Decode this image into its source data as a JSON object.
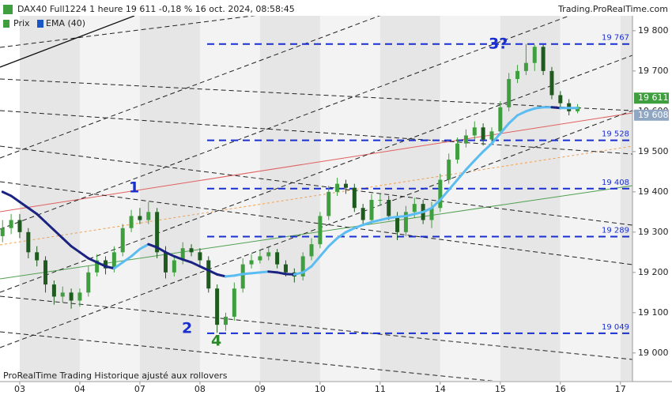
{
  "chart_data": {
    "type": "candlestick",
    "title": "DAX40 Full1224 1 heure 19 611 -0,18 % 16 oct. 2024, 08:58:45",
    "source": "Trading.ProRealTime.com",
    "footer": "ProRealTime Trading  Historique ajusté aux rollovers",
    "xlim": [
      -2.3,
      71.4
    ],
    "xticks": [
      {
        "value": 0,
        "label": "03"
      },
      {
        "value": 7,
        "label": "04"
      },
      {
        "value": 14,
        "label": "07"
      },
      {
        "value": 21,
        "label": "08"
      },
      {
        "value": 28,
        "label": "09"
      },
      {
        "value": 35,
        "label": "10"
      },
      {
        "value": 42,
        "label": "11"
      },
      {
        "value": 49,
        "label": "14"
      },
      {
        "value": 56,
        "label": "15"
      },
      {
        "value": 63,
        "label": "16"
      },
      {
        "value": 70,
        "label": "17"
      }
    ],
    "ylim": [
      18931,
      19837
    ],
    "yticks": [
      {
        "value": 19000,
        "label": "19 000"
      },
      {
        "value": 19100,
        "label": "19 100"
      },
      {
        "value": 19200,
        "label": "19 200"
      },
      {
        "value": 19300,
        "label": "19 300"
      },
      {
        "value": 19400,
        "label": "19 400"
      },
      {
        "value": 19500,
        "label": "19 500"
      },
      {
        "value": 19600,
        "label": "19 600"
      },
      {
        "value": 19700,
        "label": "19 700"
      },
      {
        "value": 19800,
        "label": "19 800"
      }
    ],
    "x": [
      -2,
      -1,
      0,
      1,
      2,
      3,
      4,
      5,
      6,
      7,
      8,
      9,
      10,
      11,
      12,
      13,
      14,
      15,
      16,
      17,
      18,
      19,
      20,
      21,
      22,
      23,
      24,
      25,
      26,
      27,
      28,
      29,
      30,
      31,
      32,
      33,
      34,
      35,
      36,
      37,
      38,
      39,
      40,
      41,
      42,
      43,
      44,
      45,
      46,
      47,
      48,
      49,
      50,
      51,
      52,
      53,
      54,
      55,
      56,
      57,
      58,
      59,
      60,
      61,
      62,
      63,
      64,
      65
    ],
    "series": [
      {
        "name": "Prix",
        "up_color": "#3f9f3f",
        "down_color": "#1f5a1f",
        "legend_color": "#3f9f3f",
        "open": [
          19290,
          19310,
          19330,
          19300,
          19250,
          19230,
          19170,
          19140,
          19150,
          19130,
          19150,
          19200,
          19230,
          19210,
          19250,
          19310,
          19340,
          19330,
          19350,
          19250,
          19200,
          19230,
          19260,
          19250,
          19230,
          19160,
          19070,
          19090,
          19160,
          19220,
          19230,
          19240,
          19250,
          19220,
          19200,
          19190,
          19240,
          19270,
          19340,
          19400,
          19420,
          19410,
          19360,
          19330,
          19380,
          19380,
          19340,
          19300,
          19350,
          19370,
          19330,
          19360,
          19430,
          19480,
          19520,
          19540,
          19560,
          19530,
          19550,
          19610,
          19680,
          19700,
          19720,
          19760,
          19700,
          19640,
          19620,
          19600
        ],
        "high": [
          19330,
          19345,
          19345,
          19310,
          19265,
          19240,
          19180,
          19165,
          19160,
          19160,
          19215,
          19245,
          19240,
          19265,
          19320,
          19355,
          19360,
          19375,
          19360,
          19265,
          19240,
          19275,
          19270,
          19260,
          19240,
          19170,
          19100,
          19175,
          19235,
          19245,
          19255,
          19262,
          19258,
          19230,
          19210,
          19250,
          19285,
          19350,
          19415,
          19435,
          19430,
          19420,
          19370,
          19395,
          19395,
          19390,
          19350,
          19365,
          19385,
          19380,
          19375,
          19445,
          19495,
          19535,
          19555,
          19575,
          19570,
          19560,
          19625,
          19695,
          19715,
          19767,
          19765,
          19765,
          19710,
          19650,
          19630,
          19618
        ],
        "low": [
          19275,
          19295,
          19285,
          19235,
          19215,
          19150,
          19120,
          19125,
          19110,
          19115,
          19140,
          19190,
          19195,
          19200,
          19240,
          19300,
          19320,
          19320,
          19235,
          19185,
          19190,
          19220,
          19240,
          19215,
          19150,
          19050,
          19055,
          19080,
          19150,
          19210,
          19222,
          19230,
          19210,
          19190,
          19175,
          19180,
          19230,
          19260,
          19330,
          19390,
          19395,
          19350,
          19315,
          19320,
          19365,
          19330,
          19280,
          19290,
          19335,
          19320,
          19310,
          19350,
          19420,
          19470,
          19510,
          19530,
          19515,
          19520,
          19540,
          19600,
          19670,
          19690,
          19700,
          19690,
          19630,
          19605,
          19590,
          19595
        ],
        "close": [
          19310,
          19330,
          19300,
          19250,
          19230,
          19170,
          19140,
          19150,
          19130,
          19150,
          19200,
          19230,
          19210,
          19250,
          19310,
          19340,
          19330,
          19350,
          19250,
          19200,
          19230,
          19260,
          19250,
          19230,
          19160,
          19070,
          19090,
          19160,
          19220,
          19230,
          19240,
          19250,
          19220,
          19200,
          19190,
          19240,
          19270,
          19340,
          19400,
          19420,
          19410,
          19360,
          19330,
          19380,
          19380,
          19340,
          19300,
          19350,
          19370,
          19330,
          19360,
          19430,
          19480,
          19520,
          19540,
          19560,
          19530,
          19550,
          19610,
          19680,
          19700,
          19720,
          19760,
          19700,
          19640,
          19620,
          19600,
          19611
        ]
      },
      {
        "name": "EMA (40)",
        "color_up": "#5bbcf2",
        "color_down": "#1a2380",
        "legend_color": "#1a55c8",
        "values": [
          19400,
          19390,
          19375,
          19360,
          19345,
          19325,
          19305,
          19285,
          19265,
          19250,
          19235,
          19225,
          19215,
          19210,
          19225,
          19240,
          19258,
          19270,
          19262,
          19250,
          19240,
          19232,
          19225,
          19215,
          19205,
          19195,
          19190,
          19192,
          19196,
          19198,
          19200,
          19202,
          19200,
          19196,
          19195,
          19200,
          19215,
          19240,
          19265,
          19285,
          19300,
          19310,
          19318,
          19325,
          19330,
          19335,
          19338,
          19340,
          19345,
          19350,
          19360,
          19380,
          19405,
          19430,
          19455,
          19478,
          19500,
          19520,
          19545,
          19570,
          19590,
          19600,
          19607,
          19610,
          19610,
          19608,
          19608,
          19608
        ]
      }
    ],
    "levels": [
      {
        "value": 19767,
        "label": "19 767"
      },
      {
        "value": 19528,
        "label": "19 528"
      },
      {
        "value": 19408,
        "label": "19 408"
      },
      {
        "value": 19289,
        "label": "19 289"
      },
      {
        "value": 19049,
        "label": "19 049"
      }
    ],
    "level_color": "#1a2fd0",
    "last_price": {
      "value": 19611,
      "label": "19 611",
      "color": "#3f9f3f"
    },
    "ema_last": {
      "value": 19608,
      "label": "19 608",
      "color": "#8fa7c2"
    },
    "annotations": [
      "1",
      "2",
      "3?",
      "4"
    ]
  }
}
